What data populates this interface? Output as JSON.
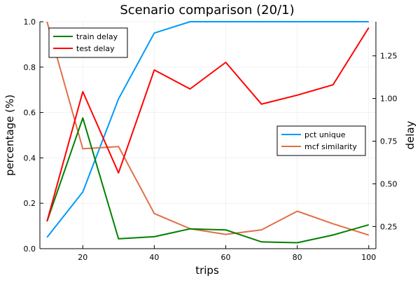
{
  "chart_data": {
    "type": "line",
    "title": "Scenario comparison (20/1)",
    "x": [
      10,
      20,
      30,
      40,
      50,
      60,
      70,
      80,
      90,
      100
    ],
    "xlabel": "trips",
    "xlim": [
      8,
      102
    ],
    "xticks": [
      20,
      40,
      60,
      80,
      100
    ],
    "grid": true,
    "left_axis": {
      "label": "percentage (%)",
      "ylim": [
        0.0,
        1.0
      ],
      "ticks": [
        0.0,
        0.2,
        0.4,
        0.6,
        0.8,
        1.0
      ],
      "tick_labels": [
        "0.0",
        "0.2",
        "0.4",
        "0.6",
        "0.8",
        "1.0"
      ],
      "series": [
        {
          "name": "pct unique",
          "color": "#009af9",
          "values": [
            0.05,
            0.25,
            0.66,
            0.95,
            1.0,
            1.0,
            1.0,
            1.0,
            1.0,
            1.0
          ]
        },
        {
          "name": "mcf similarity",
          "color": "#e26f46",
          "values": [
            1.0,
            0.44,
            0.45,
            0.155,
            0.088,
            0.063,
            0.083,
            0.165,
            0.11,
            0.06
          ]
        }
      ],
      "legend_position": "right"
    },
    "right_axis": {
      "label": "delay",
      "ylim": [
        0.12,
        1.45
      ],
      "ticks": [
        0.25,
        0.5,
        0.75,
        1.0,
        1.25
      ],
      "tick_labels": [
        "0.25",
        "0.50",
        "0.75",
        "1.00",
        "1.25"
      ],
      "series": [
        {
          "name": "train delay",
          "color": "#008000",
          "values": [
            0.28,
            0.886,
            0.178,
            0.19,
            0.236,
            0.23,
            0.16,
            0.155,
            0.2,
            0.26
          ]
        },
        {
          "name": "test delay",
          "color": "#ff0000",
          "values": [
            0.28,
            1.04,
            0.564,
            1.167,
            1.056,
            1.212,
            0.967,
            1.02,
            1.08,
            1.415
          ]
        }
      ],
      "legend_position": "top-left"
    }
  }
}
